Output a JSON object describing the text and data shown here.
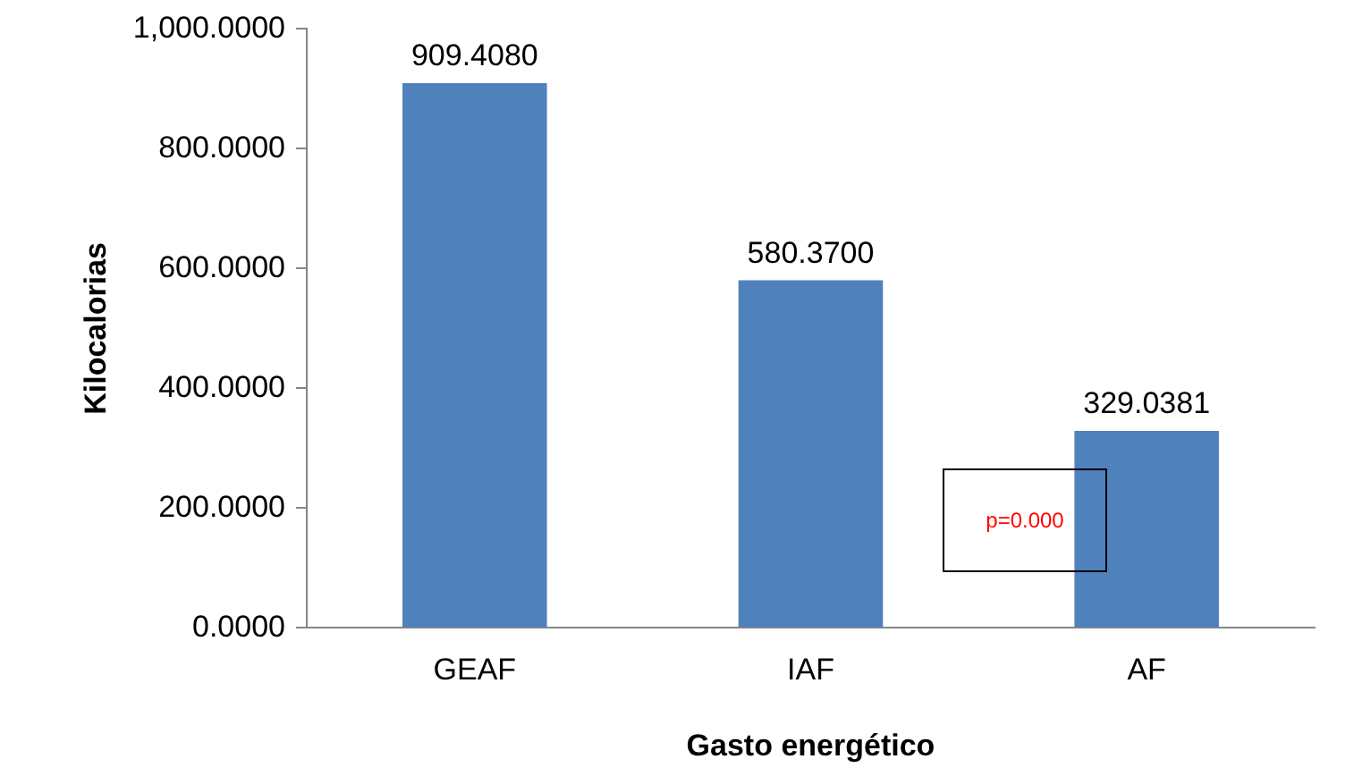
{
  "chart_data": {
    "type": "bar",
    "xlabel": "Gasto energético",
    "ylabel": "Kilocalorias",
    "categories": [
      "GEAF",
      "IAF",
      "AF"
    ],
    "values": [
      909.408,
      580.37,
      329.0381
    ],
    "value_labels": [
      "909.4080",
      "580.3700",
      "329.0381"
    ],
    "color": "#4f81bd",
    "ylim": [
      0,
      1000
    ],
    "yticks": [
      {
        "value": 0,
        "label": "0.0000"
      },
      {
        "value": 200,
        "label": "200.0000"
      },
      {
        "value": 400,
        "label": "400.0000"
      },
      {
        "value": 600,
        "label": "600.0000"
      },
      {
        "value": 800,
        "label": "800.0000"
      },
      {
        "value": 1000,
        "label": "1,000.0000"
      }
    ],
    "grid": false,
    "legend": false,
    "annotations": [
      "p=0.000"
    ]
  }
}
